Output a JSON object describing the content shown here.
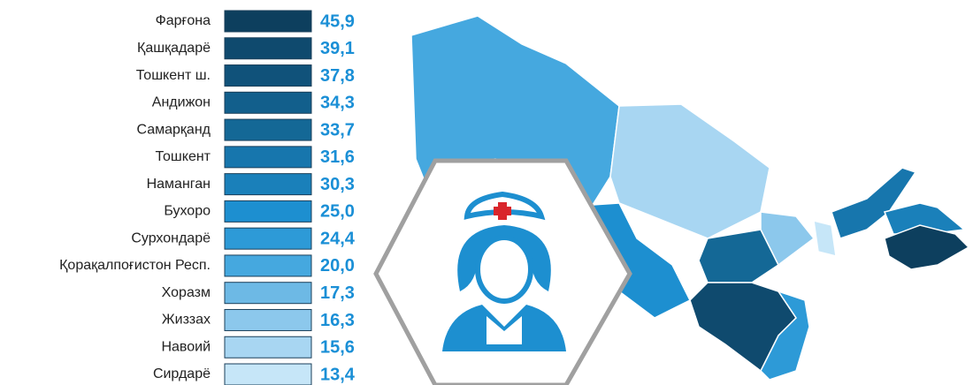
{
  "chart_data": {
    "type": "bar",
    "categories": [
      "Фарғона",
      "Қашқадарё",
      "Тошкент ш.",
      "Андижон",
      "Самарқанд",
      "Тошкент",
      "Наманган",
      "Бухоро",
      "Сурхондарё",
      "Қорақалпоғистон Респ.",
      "Хоразм",
      "Жиззах",
      "Навоий",
      "Сирдарё"
    ],
    "values": [
      45.9,
      39.1,
      37.8,
      34.3,
      33.7,
      31.6,
      30.3,
      25.0,
      24.4,
      20.0,
      17.3,
      16.3,
      15.6,
      13.4
    ],
    "value_labels": [
      "45,9",
      "39,1",
      "37,8",
      "34,3",
      "33,7",
      "31,6",
      "30,3",
      "25,0",
      "24,4",
      "20,0",
      "17,3",
      "16,3",
      "15,6",
      "13,4"
    ],
    "colors": [
      "#0d3f5e",
      "#0f4a6e",
      "#10527a",
      "#125f8c",
      "#146896",
      "#1776ad",
      "#1a80ba",
      "#1d8fd0",
      "#2d9ad7",
      "#45a8df",
      "#6db9e5",
      "#8cc8ec",
      "#a8d6f2",
      "#c6e6f8"
    ]
  }
}
